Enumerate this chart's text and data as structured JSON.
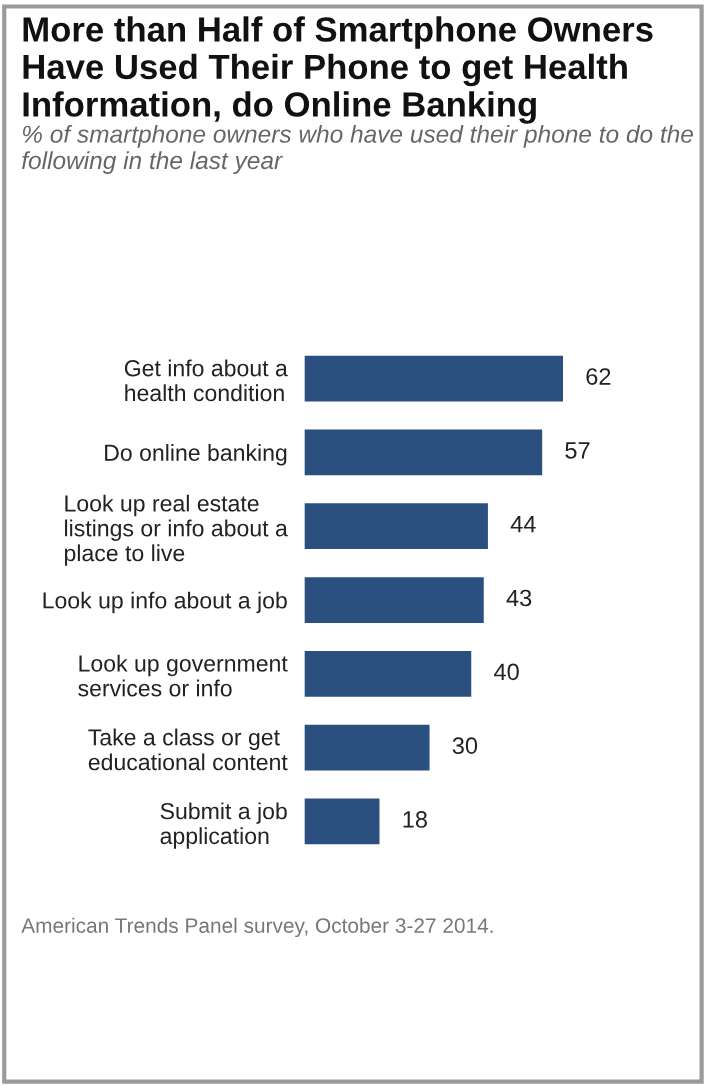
{
  "chart_data": {
    "type": "bar",
    "orientation": "horizontal",
    "title": "More than Half of Smartphone Owners Have Used Their Phone to get Health Information, do Online Banking",
    "subtitle": "% of smartphone owners who have used their phone to do the following in the last year",
    "categories": [
      "Get info about a\nhealth condition",
      "Do online banking",
      "Look up real estate\nlistings or info about a\nplace to live",
      "Look up info about a job",
      "Look up government\nservices or info",
      "Take a class or get\neducational content",
      "Submit a job\napplication"
    ],
    "values": [
      62,
      57,
      44,
      43,
      40,
      30,
      18
    ],
    "color": "#2b4f7e",
    "data_labels": true,
    "grid": false,
    "legend": false,
    "annotations": [
      "American Trends Panel survey, October 3-27 2014."
    ]
  }
}
